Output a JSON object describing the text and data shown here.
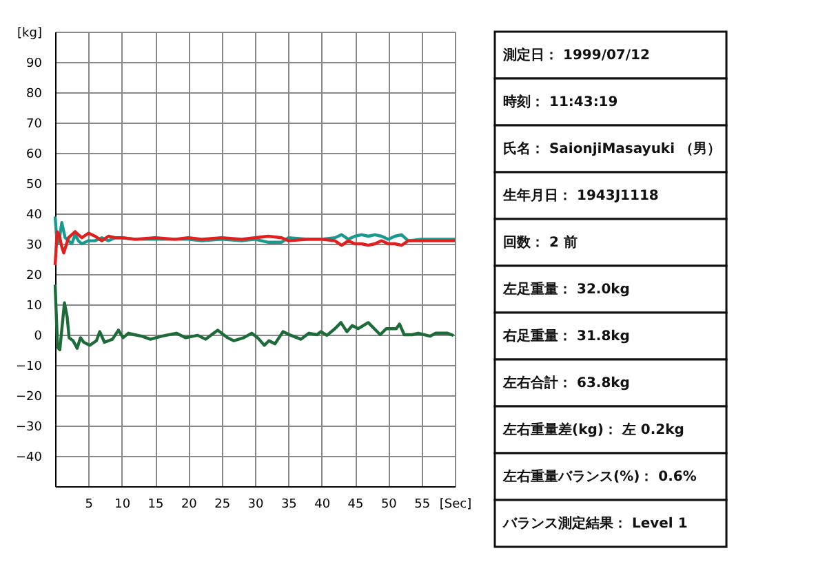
{
  "chart_data": [
    {
      "type": "line",
      "xlim": [
        0,
        60
      ],
      "ylim": [
        -50,
        100
      ],
      "xticks": [
        5,
        10,
        15,
        20,
        25,
        30,
        35,
        40,
        45,
        50,
        55,
        {
          "value": 60,
          "label": "[Sec]"
        }
      ],
      "yticks": [
        -40,
        -30,
        -20,
        -10,
        0,
        10,
        20,
        30,
        40,
        50,
        60,
        70,
        80,
        90,
        {
          "value": 100,
          "label": "[kg]"
        }
      ],
      "grid": true,
      "legend": false,
      "marker": "none",
      "line_style": "solid",
      "series": [
        {
          "color": "#1a9a8e",
          "x": [
            0,
            0.3,
            0.6,
            1,
            1.5,
            2,
            2.5,
            3,
            3.5,
            4,
            5,
            6,
            7,
            8,
            9,
            10,
            12,
            15,
            18,
            20,
            22,
            25,
            28,
            30,
            32,
            34,
            35,
            38,
            40,
            42,
            43,
            44,
            45,
            46,
            47,
            48,
            49,
            50,
            51,
            52,
            53,
            55,
            58,
            60
          ],
          "values": [
            39,
            30,
            31,
            37,
            32,
            31,
            30,
            33,
            31,
            30,
            31,
            31,
            32,
            31,
            32,
            32,
            31.5,
            31.5,
            31.5,
            31.5,
            31,
            31.5,
            31,
            31.5,
            30.5,
            30.5,
            32,
            31.5,
            31.5,
            32,
            33,
            31.5,
            32.5,
            33,
            32.5,
            33,
            32.5,
            31.5,
            32.5,
            33,
            31,
            31.5,
            31.5,
            31.5
          ]
        },
        {
          "color": "#e0201e",
          "x": [
            0,
            0.3,
            0.6,
            1,
            1.3,
            2,
            2.5,
            3,
            3.5,
            4,
            5,
            6,
            7,
            8,
            9,
            10,
            12,
            15,
            18,
            20,
            22,
            25,
            28,
            30,
            32,
            34,
            35,
            38,
            40,
            42,
            43,
            44,
            45,
            46,
            47,
            48,
            49,
            50,
            51,
            52,
            53,
            55,
            58,
            60
          ],
          "values": [
            23,
            34,
            33,
            29,
            27,
            32,
            33,
            34,
            33,
            32,
            33.5,
            32.5,
            31,
            32.5,
            32,
            32,
            31.5,
            32,
            31.5,
            32,
            31.5,
            32,
            31.5,
            32,
            32.5,
            32,
            31,
            31.5,
            31.5,
            31,
            29.5,
            31,
            30,
            30,
            29.5,
            30,
            31,
            30,
            30,
            29.5,
            31,
            31,
            31,
            31
          ]
        },
        {
          "color": "#1e6b3a",
          "x": [
            0,
            0.36,
            0.7,
            1.4,
            1.8,
            2.1,
            2.7,
            3.3,
            3.8,
            4.3,
            5.2,
            6.2,
            6.7,
            7.4,
            8.6,
            9.5,
            10.2,
            11,
            11.9,
            13,
            14.3,
            16,
            18.2,
            19.6,
            21.4,
            22.6,
            23.8,
            24.4,
            25.9,
            26.8,
            28.3,
            29.5,
            30.4,
            31.4,
            32.1,
            33,
            34.2,
            35.4,
            36.9,
            38.1,
            39.3,
            39.9,
            40.8,
            42,
            42.9,
            43.8,
            44.6,
            45.5,
            47,
            47.9,
            48.8,
            49.7,
            51.2,
            51.7,
            52.4,
            53.6,
            54.5,
            56.3,
            57.1,
            58.9,
            59.8
          ],
          "values": [
            16.5,
            -4,
            -5,
            10.5,
            6,
            -1,
            -2,
            -4.5,
            -1,
            -2.5,
            -3.5,
            -2,
            1,
            -2.5,
            -1.5,
            1.5,
            -1,
            0.5,
            0,
            -0.5,
            -1.5,
            -0.5,
            0.5,
            -1,
            -0.2,
            -1.5,
            0.5,
            1.5,
            -1,
            -2,
            -1,
            0.5,
            -1,
            -3.5,
            -2,
            -3,
            1,
            -0.2,
            -1.5,
            0.5,
            0,
            1,
            -0.2,
            2,
            4,
            1,
            3,
            2,
            4,
            2,
            0,
            2,
            2,
            3.5,
            0,
            0,
            0.5,
            -0.5,
            0.5,
            0.5,
            -0.3
          ]
        }
      ]
    },
    {
      "type": "other",
      "annotations": [
        "測定日： 1999/07/12",
        "時刻： 11:43:19",
        "氏名： SaionjiMasayuki （男）",
        "生年月日： 1943J1118",
        "回数： 2 前",
        "左足重量： 32.0kg",
        "右足重量： 31.8kg",
        "左右合計： 63.8kg",
        "左右重量差(kg)： 左 0.2kg",
        "左右重量バランス(%)： 0.6%",
        "バランス測定結果： Level 1"
      ]
    }
  ]
}
